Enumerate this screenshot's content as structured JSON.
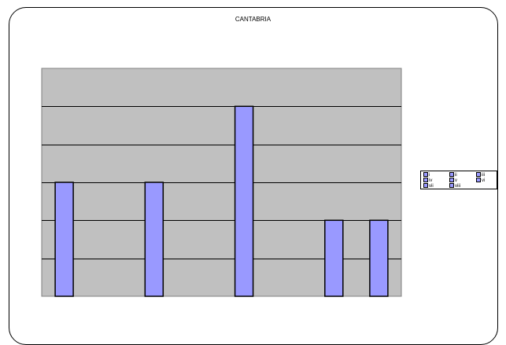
{
  "chart_data": {
    "type": "bar",
    "title": "CANTABRIA",
    "xlabel": "",
    "ylabel": "",
    "categories": [
      "i",
      "ii",
      "iii",
      "iv",
      "v",
      "vi",
      "vii",
      "viii"
    ],
    "series": [
      {
        "values": [
          3,
          0,
          3,
          0,
          5,
          0,
          2,
          2
        ]
      }
    ],
    "ylim": [
      0,
      6
    ],
    "grid": true,
    "legend": {
      "placement": "right",
      "entries": [
        "i",
        "ii",
        "iii",
        "iv",
        "v",
        "vi",
        "vii",
        "viii"
      ]
    },
    "colors": {
      "bar_fill": "#9999ff",
      "bar_stroke": "#000000",
      "plot_background": "#c0c0c0",
      "gridline": "#000000"
    }
  }
}
